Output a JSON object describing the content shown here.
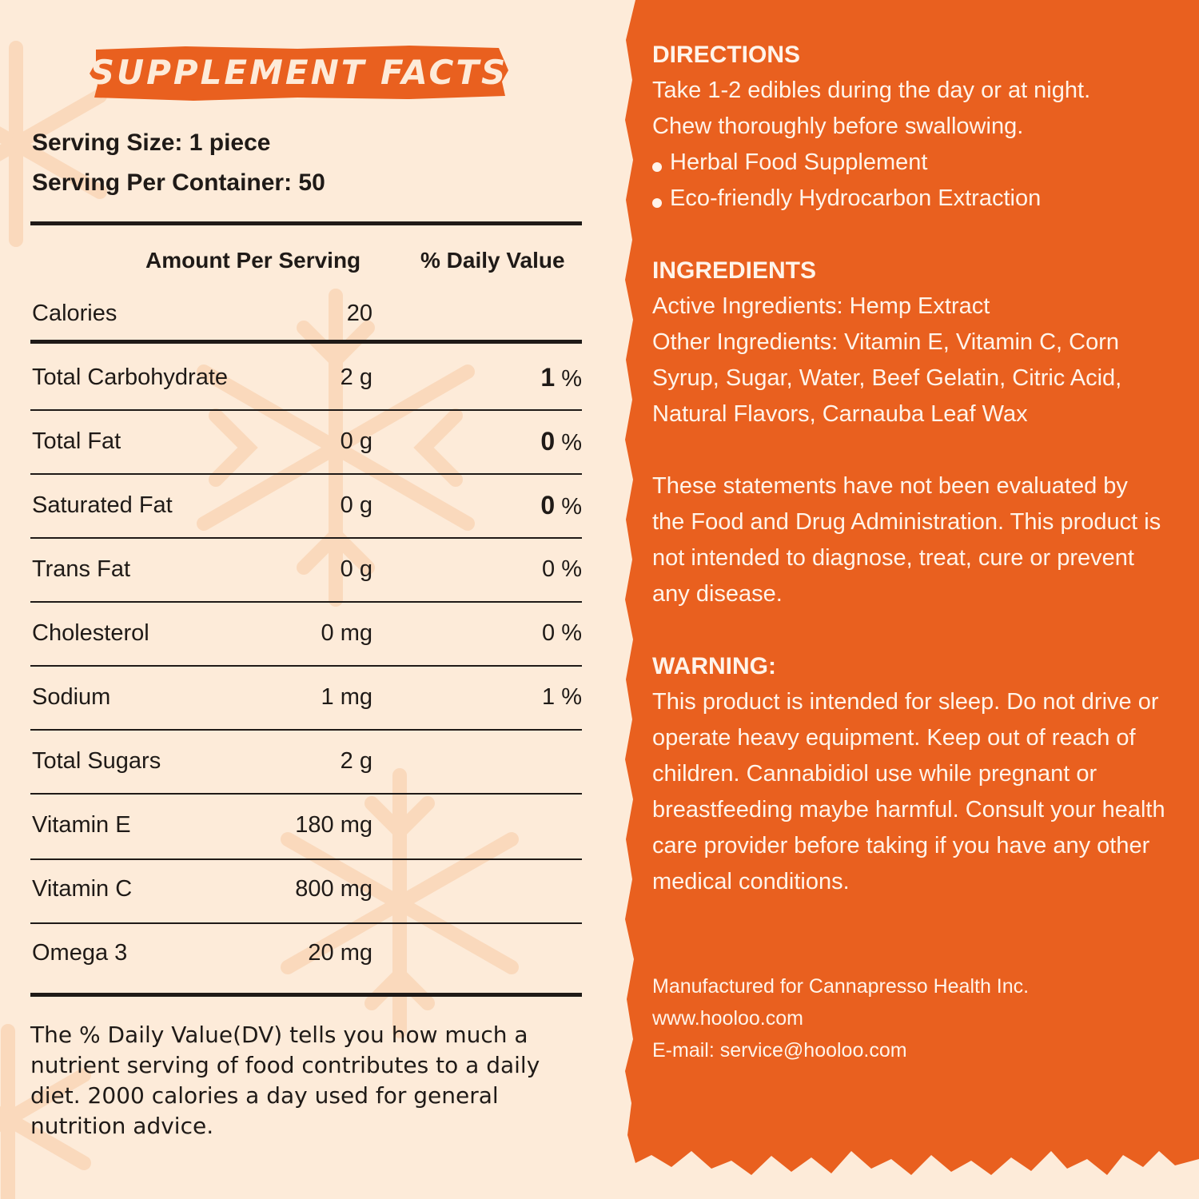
{
  "colors": {
    "background": "#fdebd9",
    "orange": "#e9601f",
    "text_dark": "#1f1a17",
    "text_light": "#fff4ea"
  },
  "title": "SUPPLEMENT FACTS",
  "serving": {
    "size_label": "Serving Size:",
    "size_value": "1 piece",
    "per_container_label": "Serving Per Container:",
    "per_container_value": "50"
  },
  "table": {
    "header_amount": "Amount Per Serving",
    "header_dv": "% Daily Value",
    "rows": [
      {
        "name": "Calories",
        "amount": "20",
        "dv": "",
        "unit": ""
      },
      {
        "name": "Total Carbohydrate",
        "amount": "2 g",
        "dv": "1",
        "unit": "%"
      },
      {
        "name": "Total Fat",
        "amount": "0 g",
        "dv": "0",
        "unit": "%"
      },
      {
        "name": "Saturated Fat",
        "amount": "0 g",
        "dv": "0",
        "unit": "%"
      },
      {
        "name": "Trans Fat",
        "amount": "0 g",
        "dv": "0",
        "unit": "%"
      },
      {
        "name": "Cholesterol",
        "amount": "0 mg",
        "dv": "0",
        "unit": "%"
      },
      {
        "name": "Sodium",
        "amount": "1 mg",
        "dv": "1",
        "unit": "%"
      },
      {
        "name": "Total Sugars",
        "amount": "2 g",
        "dv": "",
        "unit": ""
      },
      {
        "name": "Vitamin E",
        "amount": "180 mg",
        "dv": "",
        "unit": ""
      },
      {
        "name": "Vitamin C",
        "amount": "800 mg",
        "dv": "",
        "unit": ""
      },
      {
        "name": "Omega 3",
        "amount": "20 mg",
        "dv": "",
        "unit": ""
      }
    ]
  },
  "footnote": "The % Daily Value(DV) tells you how much a nutrient serving of food contributes to a daily diet. 2000 calories a day used for general nutrition advice.",
  "directions": {
    "heading": "DIRECTIONS",
    "line1": "Take 1-2 edibles during the day or at night.",
    "line2": "Chew thoroughly before swallowing.",
    "bullet1": "Herbal Food Supplement",
    "bullet2": "Eco-friendly Hydrocarbon Extraction"
  },
  "ingredients": {
    "heading": "INGREDIENTS",
    "active": "Active Ingredients: Hemp Extract",
    "other": "Other Ingredients: Vitamin E, Vitamin C, Corn Syrup, Sugar, Water, Beef Gelatin, Citric Acid, Natural Flavors, Carnauba Leaf Wax"
  },
  "disclaimer": "These statements have not been evaluated by the Food and Drug Administration. This product is not intended to diagnose, treat, cure or prevent any disease.",
  "warning": {
    "heading": "WARNING:",
    "text": "This product is intended for sleep. Do not drive or operate heavy equipment. Keep out of reach of children. Cannabidiol use while pregnant or breastfeeding maybe harmful. Consult your health care provider before taking if you have any other medical conditions."
  },
  "manufacturer": {
    "line": "Manufactured for Cannapresso Health Inc.",
    "website": "www.hooloo.com",
    "email": "E-mail: service@hooloo.com"
  }
}
